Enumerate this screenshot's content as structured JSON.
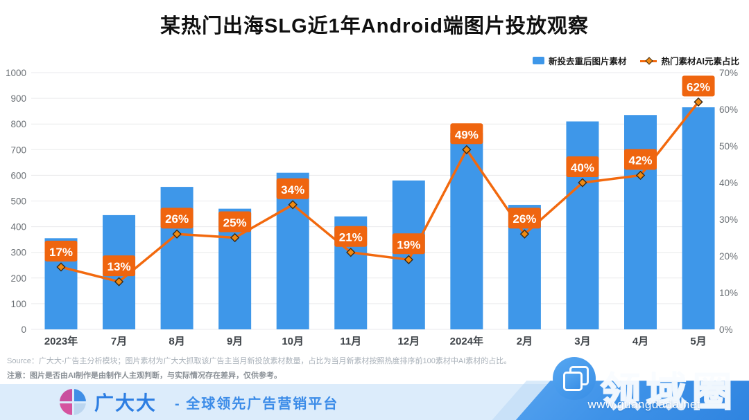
{
  "title": "某热门出海SLG近1年Android端图片投放观察",
  "legend": {
    "bar_label": "新投去重后图片素材",
    "line_label": "热门素材AI元素占比"
  },
  "chart_data": {
    "type": "bar",
    "categories": [
      "2023年",
      "7月",
      "8月",
      "9月",
      "10月",
      "11月",
      "12月",
      "2024年",
      "2月",
      "3月",
      "4月",
      "5月"
    ],
    "series": [
      {
        "name": "新投去重后图片素材",
        "type": "bar",
        "axis": "left",
        "values": [
          355,
          445,
          555,
          470,
          610,
          440,
          580,
          765,
          485,
          810,
          835,
          865
        ]
      },
      {
        "name": "热门素材AI元素占比",
        "type": "line",
        "axis": "right",
        "unit": "%",
        "values": [
          17,
          13,
          26,
          25,
          34,
          21,
          19,
          49,
          26,
          40,
          42,
          62
        ]
      }
    ],
    "data_labels": [
      "17%",
      "13%",
      "26%",
      "25%",
      "34%",
      "21%",
      "19%",
      "49%",
      "26%",
      "40%",
      "42%",
      "62%"
    ],
    "left_axis": {
      "min": 0,
      "max": 1000,
      "step": 100,
      "tick_labels": [
        "0",
        "100",
        "200",
        "300",
        "400",
        "500",
        "600",
        "700",
        "800",
        "900",
        "1000"
      ]
    },
    "right_axis": {
      "min": 0,
      "max": 70,
      "step": 10,
      "tick_labels": [
        "0%",
        "10%",
        "20%",
        "30%",
        "40%",
        "50%",
        "60%",
        "70%"
      ]
    },
    "grid": true,
    "legend_position": "top-right"
  },
  "colors": {
    "bar": "#3E97E9",
    "line": "#F2690E",
    "marker_fill": "#F08A12",
    "marker_stroke": "#3A2A18",
    "label_bg": "#EF650F",
    "label_text": "#FFFFFF",
    "gridline": "#E9EAEC",
    "footer_bg": "#DCECFB",
    "brand_blue": "#2D7EE2",
    "band_blue": "#3E92E8"
  },
  "source_note": "Source：广大大-广告主分析模块；图片素材为广大大抓取该广告主当月新投放素材数量，占比为当月新素材按照热度排序前100素材中AI素材的占比。",
  "disclaimer": "注意：图片是否由AI制作是由制作人主观判断，与实际情况存在差异，仅供参考。",
  "footer": {
    "brand": "广大大",
    "tagline": "- 全球领先广告营销平台",
    "watermark_title": "领域圈",
    "watermark_url": "www.guangdada.net"
  }
}
